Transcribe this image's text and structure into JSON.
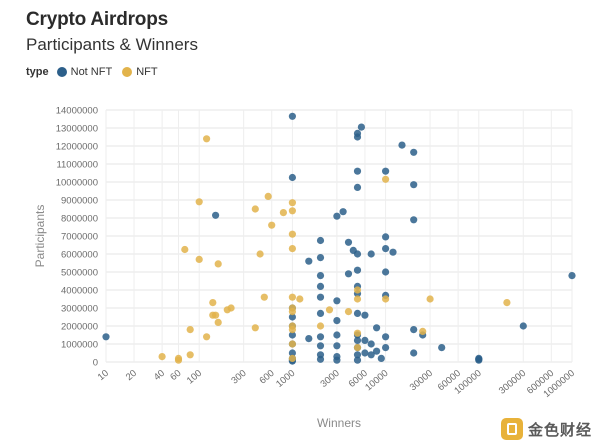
{
  "title": "Crypto Airdrops",
  "subtitle": "Participants & Winners",
  "legend": {
    "title": "type",
    "items": [
      {
        "label": "Not NFT",
        "color": "#2c5f8a"
      },
      {
        "label": "NFT",
        "color": "#e2b34b"
      }
    ]
  },
  "watermark": {
    "text": "金色财经"
  },
  "chart_data": {
    "type": "scatter",
    "title": "Crypto Airdrops",
    "subtitle": "Participants & Winners",
    "xlabel": "Winners",
    "ylabel": "Participants",
    "xscale": "log",
    "xlim": [
      10,
      1000000
    ],
    "ylim": [
      0,
      14000000
    ],
    "grid": true,
    "legend_position": "top-left",
    "x_ticks": [
      10,
      20,
      40,
      60,
      100,
      300,
      600,
      1000,
      3000,
      6000,
      10000,
      30000,
      60000,
      100000,
      300000,
      600000,
      1000000
    ],
    "x_tick_labels": [
      "10",
      "20",
      "40",
      "60",
      "100",
      "300",
      "600",
      "1000",
      "3000",
      "6000",
      "10000",
      "30000",
      "60000",
      "100000",
      "300000",
      "600000",
      "1000000"
    ],
    "y_ticks": [
      0,
      1000000,
      2000000,
      3000000,
      4000000,
      5000000,
      6000000,
      7000000,
      8000000,
      9000000,
      10000000,
      11000000,
      12000000,
      13000000,
      14000000
    ],
    "y_tick_labels": [
      "0",
      "1000000",
      "2000000",
      "3000000",
      "4000000",
      "5000000",
      "6000000",
      "7000000",
      "8000000",
      "9000000",
      "10000000",
      "11000000",
      "12000000",
      "13000000",
      "14000000"
    ],
    "series": [
      {
        "name": "Not NFT",
        "color": "#2c5f8a",
        "points": [
          [
            10,
            1400000
          ],
          [
            150,
            8150000
          ],
          [
            1000,
            13650000
          ],
          [
            1000,
            10250000
          ],
          [
            1000,
            3000000
          ],
          [
            1000,
            2500000
          ],
          [
            1000,
            2000000
          ],
          [
            1000,
            1500000
          ],
          [
            1000,
            1000000
          ],
          [
            1000,
            500000
          ],
          [
            1000,
            200000
          ],
          [
            1000,
            100000
          ],
          [
            1000,
            50000
          ],
          [
            1500,
            5600000
          ],
          [
            1500,
            1300000
          ],
          [
            2000,
            6750000
          ],
          [
            2000,
            5800000
          ],
          [
            2000,
            4800000
          ],
          [
            2000,
            4200000
          ],
          [
            2000,
            3600000
          ],
          [
            2000,
            2700000
          ],
          [
            2000,
            1400000
          ],
          [
            2000,
            900000
          ],
          [
            2000,
            400000
          ],
          [
            2000,
            150000
          ],
          [
            3000,
            8100000
          ],
          [
            3500,
            8350000
          ],
          [
            3000,
            3400000
          ],
          [
            3000,
            2300000
          ],
          [
            3000,
            1500000
          ],
          [
            3000,
            900000
          ],
          [
            3000,
            300000
          ],
          [
            3000,
            100000
          ],
          [
            4000,
            6650000
          ],
          [
            4000,
            4900000
          ],
          [
            4500,
            6200000
          ],
          [
            5000,
            12700000
          ],
          [
            5000,
            12500000
          ],
          [
            5000,
            10600000
          ],
          [
            5000,
            9700000
          ],
          [
            5000,
            6000000
          ],
          [
            5000,
            5100000
          ],
          [
            5000,
            4200000
          ],
          [
            5000,
            3800000
          ],
          [
            5000,
            2700000
          ],
          [
            5000,
            1500000
          ],
          [
            5000,
            1200000
          ],
          [
            5000,
            800000
          ],
          [
            5000,
            400000
          ],
          [
            5000,
            100000
          ],
          [
            5500,
            13050000
          ],
          [
            6000,
            2600000
          ],
          [
            6000,
            1200000
          ],
          [
            6000,
            500000
          ],
          [
            7000,
            6000000
          ],
          [
            7000,
            1000000
          ],
          [
            7000,
            400000
          ],
          [
            8000,
            1900000
          ],
          [
            8000,
            600000
          ],
          [
            9000,
            200000
          ],
          [
            10000,
            10600000
          ],
          [
            10000,
            6950000
          ],
          [
            10000,
            6300000
          ],
          [
            10000,
            5000000
          ],
          [
            10000,
            3700000
          ],
          [
            10000,
            1400000
          ],
          [
            10000,
            800000
          ],
          [
            12000,
            6100000
          ],
          [
            15000,
            12050000
          ],
          [
            20000,
            11650000
          ],
          [
            20000,
            9850000
          ],
          [
            20000,
            7900000
          ],
          [
            20000,
            1800000
          ],
          [
            20000,
            500000
          ],
          [
            25000,
            1500000
          ],
          [
            40000,
            800000
          ],
          [
            100000,
            200000
          ],
          [
            100000,
            150000
          ],
          [
            100000,
            100000
          ],
          [
            300000,
            2000000
          ],
          [
            1000000,
            4800000
          ]
        ]
      },
      {
        "name": "NFT",
        "color": "#e2b34b",
        "points": [
          [
            40,
            300000
          ],
          [
            60,
            100000
          ],
          [
            60,
            200000
          ],
          [
            70,
            6250000
          ],
          [
            80,
            400000
          ],
          [
            80,
            1800000
          ],
          [
            100,
            5700000
          ],
          [
            100,
            8900000
          ],
          [
            120,
            12400000
          ],
          [
            120,
            1400000
          ],
          [
            140,
            3300000
          ],
          [
            140,
            2600000
          ],
          [
            150,
            2600000
          ],
          [
            160,
            5450000
          ],
          [
            160,
            2200000
          ],
          [
            200,
            2900000
          ],
          [
            220,
            3000000
          ],
          [
            400,
            8500000
          ],
          [
            450,
            6000000
          ],
          [
            400,
            1900000
          ],
          [
            500,
            3600000
          ],
          [
            550,
            9200000
          ],
          [
            600,
            7600000
          ],
          [
            800,
            8300000
          ],
          [
            1000,
            8850000
          ],
          [
            1000,
            8400000
          ],
          [
            1000,
            7100000
          ],
          [
            1000,
            6300000
          ],
          [
            1000,
            3600000
          ],
          [
            1000,
            3000000
          ],
          [
            1000,
            2800000
          ],
          [
            1000,
            2000000
          ],
          [
            1000,
            1800000
          ],
          [
            1000,
            1000000
          ],
          [
            1000,
            200000
          ],
          [
            1200,
            3500000
          ],
          [
            2000,
            2000000
          ],
          [
            2500,
            2900000
          ],
          [
            4000,
            2800000
          ],
          [
            5000,
            4000000
          ],
          [
            5000,
            3500000
          ],
          [
            5000,
            1600000
          ],
          [
            5000,
            800000
          ],
          [
            10000,
            10150000
          ],
          [
            10000,
            3500000
          ],
          [
            25000,
            1700000
          ],
          [
            30000,
            3500000
          ],
          [
            200000,
            3300000
          ]
        ]
      }
    ]
  }
}
